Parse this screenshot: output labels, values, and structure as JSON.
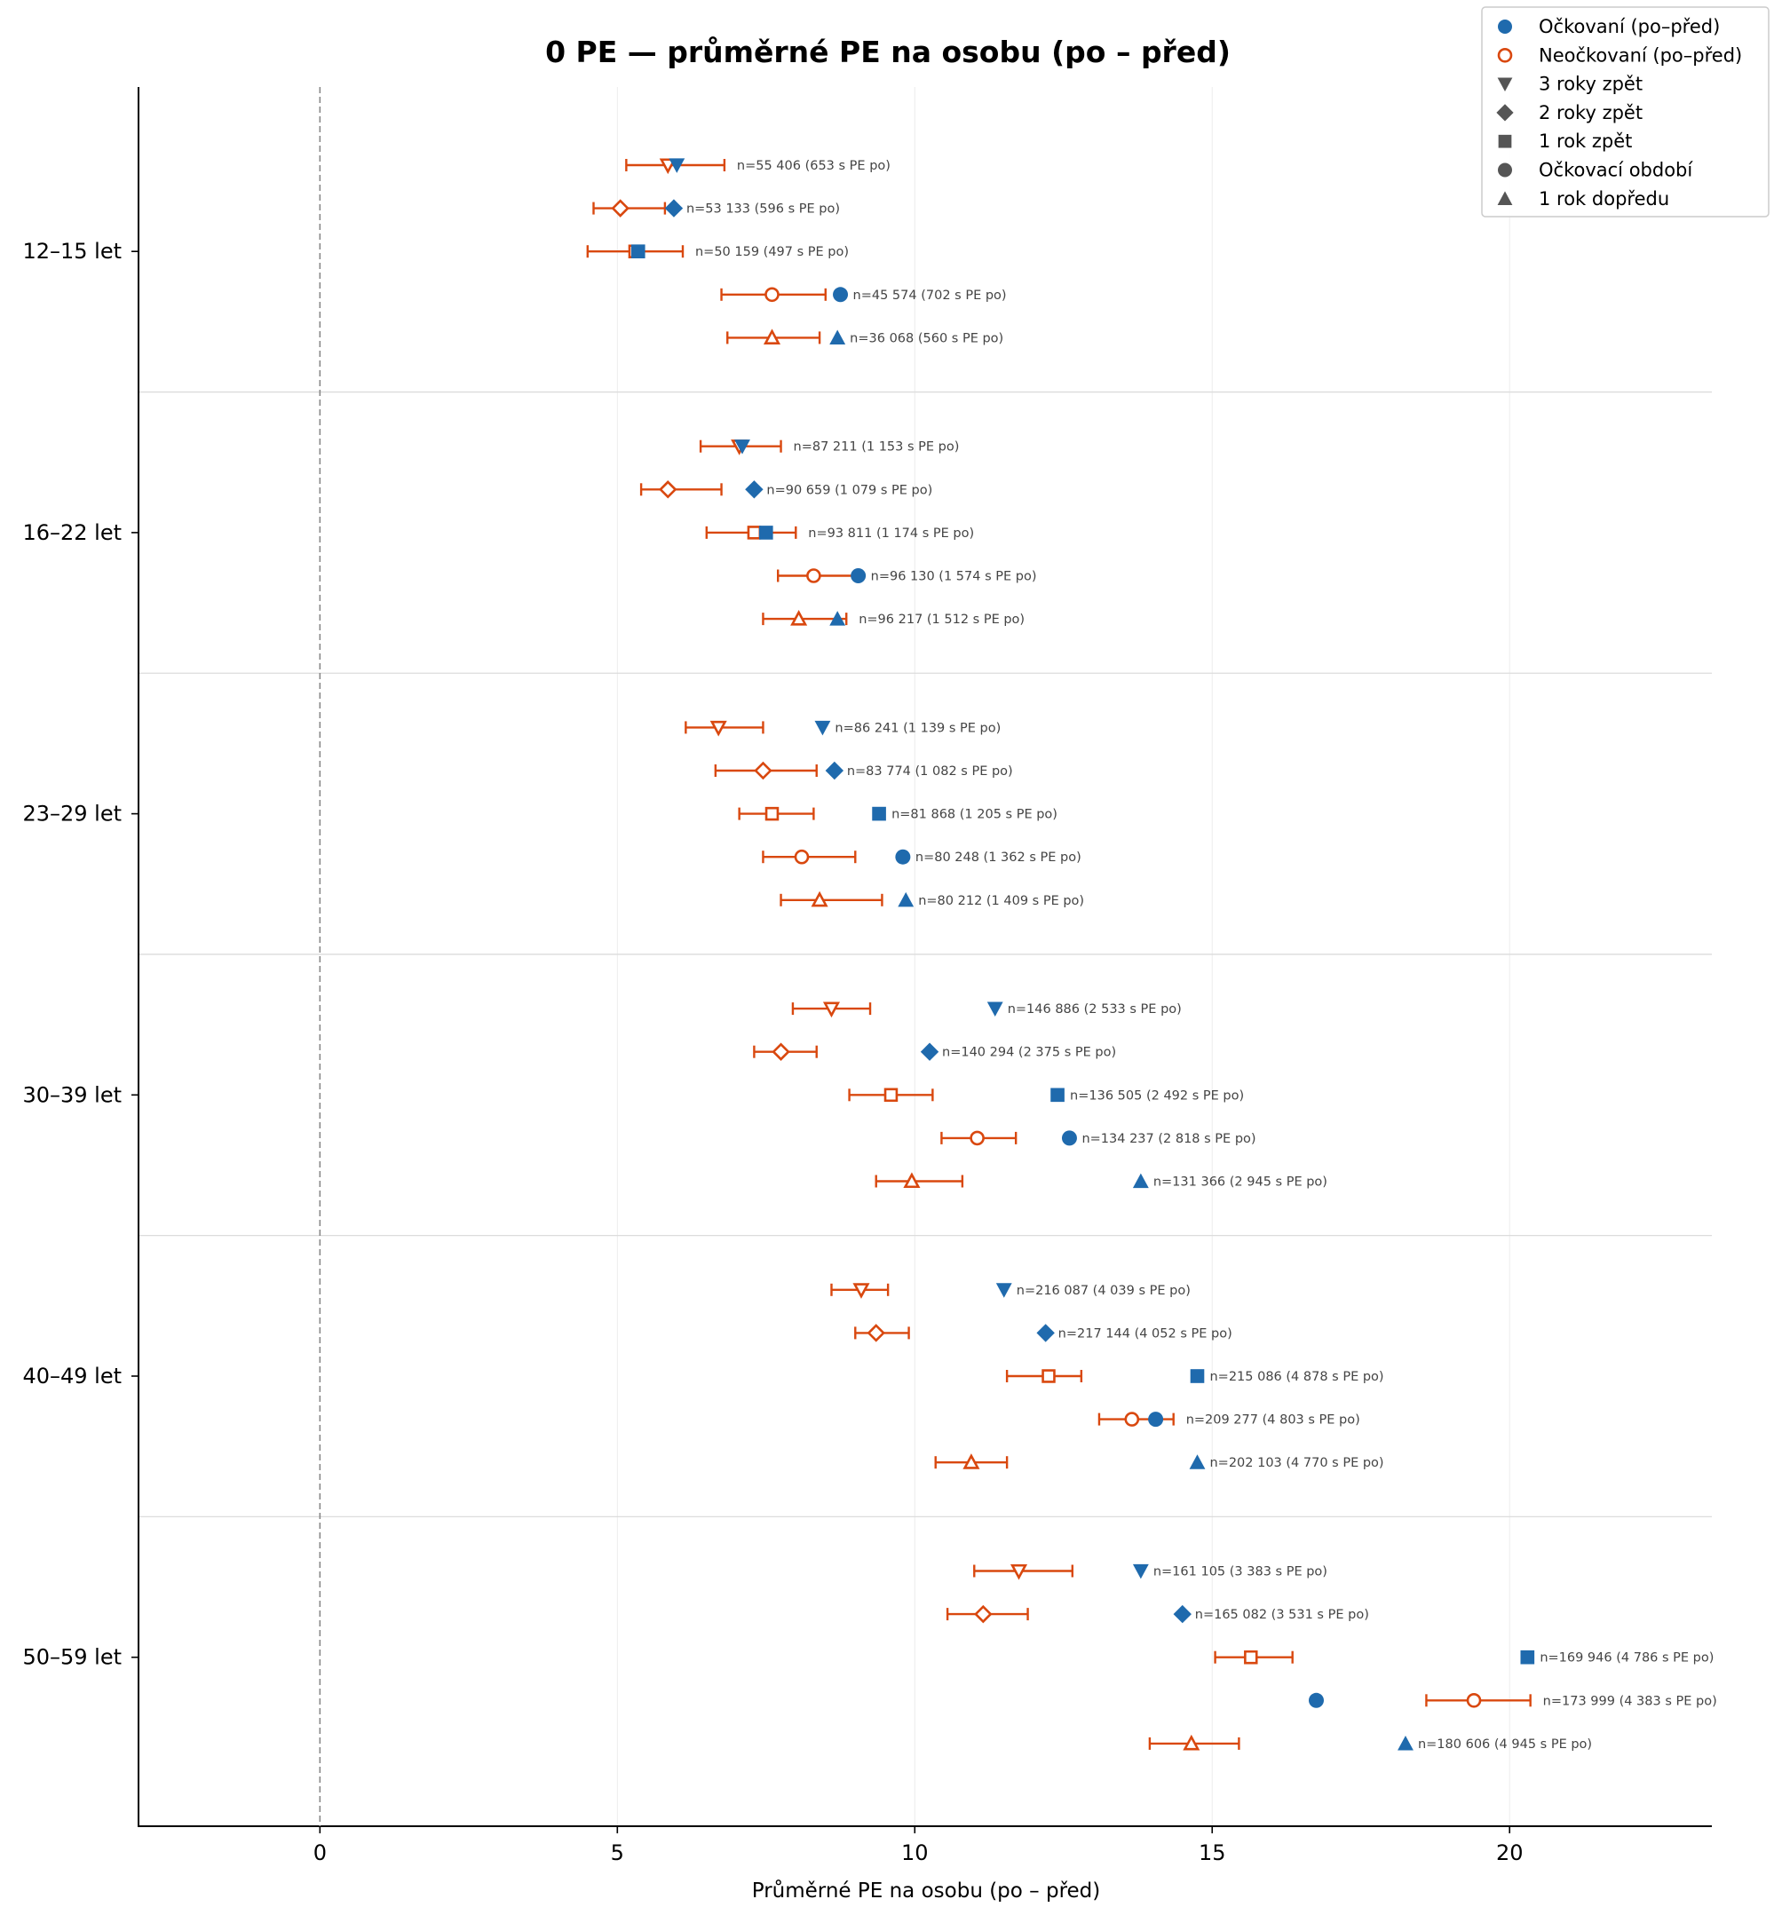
{
  "chart_data": {
    "type": "scatter",
    "title": "0 PE — průměrné PE na osobu (po – před)",
    "xlabel": "Průměrné PE na osobu (po – před)",
    "ylabel": "",
    "xlim": [
      -3.05,
      23.4
    ],
    "xticks": [
      0,
      5,
      10,
      15,
      20
    ],
    "reference_line_x": 0,
    "grid": "vertical",
    "legend_position": "top-right",
    "colors": {
      "vaccinated": "#1f6aad",
      "unvaccinated": "#d9480f"
    },
    "legend": [
      {
        "label": "Očkovaní (po–před)",
        "marker": "circle",
        "style": "filled-blue"
      },
      {
        "label": "Neočkovaní (po–před)",
        "marker": "circle",
        "style": "hollow-orange"
      },
      {
        "label": "3 roky zpět",
        "marker": "triangle-down",
        "style": "gray"
      },
      {
        "label": "2 roky zpět",
        "marker": "diamond",
        "style": "gray"
      },
      {
        "label": "1 rok zpět",
        "marker": "square",
        "style": "gray"
      },
      {
        "label": "Očkovací období",
        "marker": "circle",
        "style": "gray"
      },
      {
        "label": "1 rok dopředu",
        "marker": "triangle-up",
        "style": "gray"
      }
    ],
    "periods": [
      {
        "key": "p3",
        "marker": "triangle-down"
      },
      {
        "key": "p2",
        "marker": "diamond"
      },
      {
        "key": "p1",
        "marker": "square"
      },
      {
        "key": "p0",
        "marker": "circle"
      },
      {
        "key": "pf",
        "marker": "triangle-up"
      }
    ],
    "groups": [
      {
        "label": "12–15 let",
        "rows": [
          {
            "vacc": 6.0,
            "unvacc": 5.85,
            "ci": [
              5.15,
              6.8
            ],
            "note": "n=55 406 (653 s PE po)"
          },
          {
            "vacc": 5.95,
            "unvacc": 5.05,
            "ci": [
              4.6,
              5.8
            ],
            "note": "n=53 133 (596 s PE po)"
          },
          {
            "vacc": 5.35,
            "unvacc": 5.3,
            "ci": [
              4.5,
              6.1
            ],
            "note": "n=50 159 (497 s PE po)"
          },
          {
            "vacc": 8.75,
            "unvacc": 7.6,
            "ci": [
              6.75,
              8.5
            ],
            "note": "n=45 574 (702 s PE po)"
          },
          {
            "vacc": 8.7,
            "unvacc": 7.6,
            "ci": [
              6.85,
              8.4
            ],
            "note": "n=36 068 (560 s PE po)"
          }
        ]
      },
      {
        "label": "16–22 let",
        "rows": [
          {
            "vacc": 7.1,
            "unvacc": 7.05,
            "ci": [
              6.4,
              7.75
            ],
            "note": "n=87 211 (1 153 s PE po)"
          },
          {
            "vacc": 7.3,
            "unvacc": 5.85,
            "ci": [
              5.4,
              6.75
            ],
            "note": "n=90 659 (1 079 s PE po)"
          },
          {
            "vacc": 7.5,
            "unvacc": 7.3,
            "ci": [
              6.5,
              8.0
            ],
            "note": "n=93 811 (1 174 s PE po)"
          },
          {
            "vacc": 9.05,
            "unvacc": 8.3,
            "ci": [
              7.7,
              9.05
            ],
            "note": "n=96 130 (1 574 s PE po)"
          },
          {
            "vacc": 8.7,
            "unvacc": 8.05,
            "ci": [
              7.45,
              8.85
            ],
            "note": "n=96 217 (1 512 s PE po)"
          }
        ]
      },
      {
        "label": "23–29 let",
        "rows": [
          {
            "vacc": 8.45,
            "unvacc": 6.7,
            "ci": [
              6.15,
              7.45
            ],
            "note": "n=86 241 (1 139 s PE po)"
          },
          {
            "vacc": 8.65,
            "unvacc": 7.45,
            "ci": [
              6.65,
              8.35
            ],
            "note": "n=83 774 (1 082 s PE po)"
          },
          {
            "vacc": 9.4,
            "unvacc": 7.6,
            "ci": [
              7.05,
              8.3
            ],
            "note": "n=81 868 (1 205 s PE po)"
          },
          {
            "vacc": 9.8,
            "unvacc": 8.1,
            "ci": [
              7.45,
              9.0
            ],
            "note": "n=80 248 (1 362 s PE po)"
          },
          {
            "vacc": 9.85,
            "unvacc": 8.4,
            "ci": [
              7.75,
              9.45
            ],
            "note": "n=80 212 (1 409 s PE po)"
          }
        ]
      },
      {
        "label": "30–39 let",
        "rows": [
          {
            "vacc": 11.35,
            "unvacc": 8.6,
            "ci": [
              7.95,
              9.25
            ],
            "note": "n=146 886 (2 533 s PE po)"
          },
          {
            "vacc": 10.25,
            "unvacc": 7.75,
            "ci": [
              7.3,
              8.35
            ],
            "note": "n=140 294 (2 375 s PE po)"
          },
          {
            "vacc": 12.4,
            "unvacc": 9.6,
            "ci": [
              8.9,
              10.3
            ],
            "note": "n=136 505 (2 492 s PE po)"
          },
          {
            "vacc": 12.6,
            "unvacc": 11.05,
            "ci": [
              10.45,
              11.7
            ],
            "note": "n=134 237 (2 818 s PE po)"
          },
          {
            "vacc": 13.8,
            "unvacc": 9.95,
            "ci": [
              9.35,
              10.8
            ],
            "note": "n=131 366 (2 945 s PE po)"
          }
        ]
      },
      {
        "label": "40–49 let",
        "rows": [
          {
            "vacc": 11.5,
            "unvacc": 9.1,
            "ci": [
              8.6,
              9.55
            ],
            "note": "n=216 087 (4 039 s PE po)"
          },
          {
            "vacc": 12.2,
            "unvacc": 9.35,
            "ci": [
              9.0,
              9.9
            ],
            "note": "n=217 144 (4 052 s PE po)"
          },
          {
            "vacc": 14.75,
            "unvacc": 12.25,
            "ci": [
              11.55,
              12.8
            ],
            "note": "n=215 086 (4 878 s PE po)"
          },
          {
            "vacc": 14.05,
            "unvacc": 13.65,
            "ci": [
              13.1,
              14.35
            ],
            "note": "n=209 277 (4 803 s PE po)"
          },
          {
            "vacc": 14.75,
            "unvacc": 10.95,
            "ci": [
              10.35,
              11.55
            ],
            "note": "n=202 103 (4 770 s PE po)"
          }
        ]
      },
      {
        "label": "50–59 let",
        "rows": [
          {
            "vacc": 13.8,
            "unvacc": 11.75,
            "ci": [
              11.0,
              12.65
            ],
            "note": "n=161 105 (3 383 s PE po)"
          },
          {
            "vacc": 14.5,
            "unvacc": 11.15,
            "ci": [
              10.55,
              11.9
            ],
            "note": "n=165 082 (3 531 s PE po)"
          },
          {
            "vacc": 20.3,
            "unvacc": 15.65,
            "ci": [
              15.05,
              16.35
            ],
            "note": "n=169 946 (4 786 s PE po)"
          },
          {
            "vacc": 16.75,
            "unvacc": 19.4,
            "ci": [
              18.6,
              20.35
            ],
            "note": "n=173 999 (4 383 s PE po)"
          },
          {
            "vacc": 18.25,
            "unvacc": 14.65,
            "ci": [
              13.95,
              15.45
            ],
            "note": "n=180 606 (4 945 s PE po)"
          }
        ]
      }
    ]
  }
}
